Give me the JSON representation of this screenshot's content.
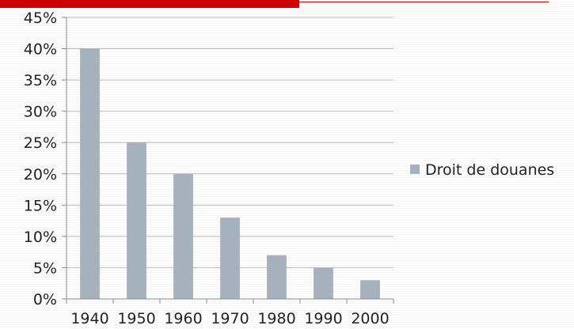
{
  "chart_data": {
    "type": "bar",
    "categories": [
      "1940",
      "1950",
      "1960",
      "1970",
      "1980",
      "1990",
      "2000"
    ],
    "series": [
      {
        "name": "Droit de douanes",
        "values": [
          40,
          25,
          20,
          13,
          7,
          5,
          3
        ],
        "color": "#a5b1bd"
      }
    ],
    "title": "",
    "xlabel": "",
    "ylabel": "",
    "ylim": [
      0,
      45
    ],
    "yticks": [
      0,
      5,
      10,
      15,
      20,
      25,
      30,
      35,
      40,
      45
    ],
    "ytick_suffix": "%",
    "grid": true,
    "legend_position": "right",
    "accent_color": "#cc0000"
  }
}
